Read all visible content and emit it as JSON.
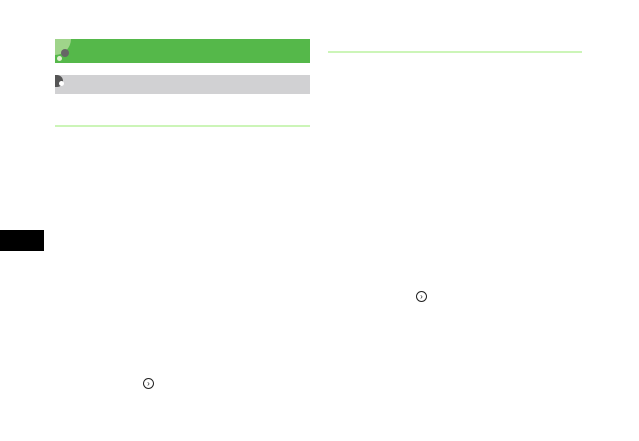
{
  "page": {
    "accent_color": "#55b84a",
    "subheader_color": "#d1d1d3",
    "rule_color": "#ccf5b8",
    "icons": [
      "arrow-right-circle-icon",
      "arrow-right-circle-icon"
    ]
  }
}
